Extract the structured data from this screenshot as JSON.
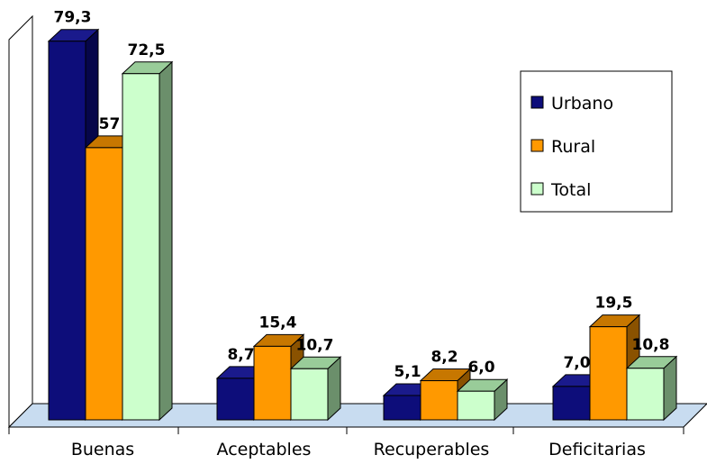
{
  "chart_data": {
    "type": "bar",
    "categories": [
      "Buenas",
      "Aceptables",
      "Recuperables",
      "Deficitarias"
    ],
    "series": [
      {
        "name": "Urbano",
        "values": [
          79.3,
          8.7,
          5.1,
          7.0
        ],
        "labels": [
          "79,3",
          "8,7",
          "5,1",
          "7,0"
        ],
        "color": "#0d0d7a",
        "side_color": "#06064a",
        "top_color": "#1a1a8c"
      },
      {
        "name": "Rural",
        "values": [
          57,
          15.4,
          8.2,
          19.5
        ],
        "labels": [
          "57",
          "15,4",
          "8,2",
          "19,5"
        ],
        "color": "#ff9900",
        "side_color": "#8a5200",
        "top_color": "#c77700"
      },
      {
        "name": "Total",
        "values": [
          72.5,
          10.7,
          6.0,
          10.8
        ],
        "labels": [
          "72,5",
          "10,7",
          "6,0",
          "10,8"
        ],
        "color": "#ccffcc",
        "side_color": "#6b8f6b",
        "top_color": "#99cc99"
      }
    ],
    "legend_position": "right",
    "grid": false,
    "three_d": true
  }
}
